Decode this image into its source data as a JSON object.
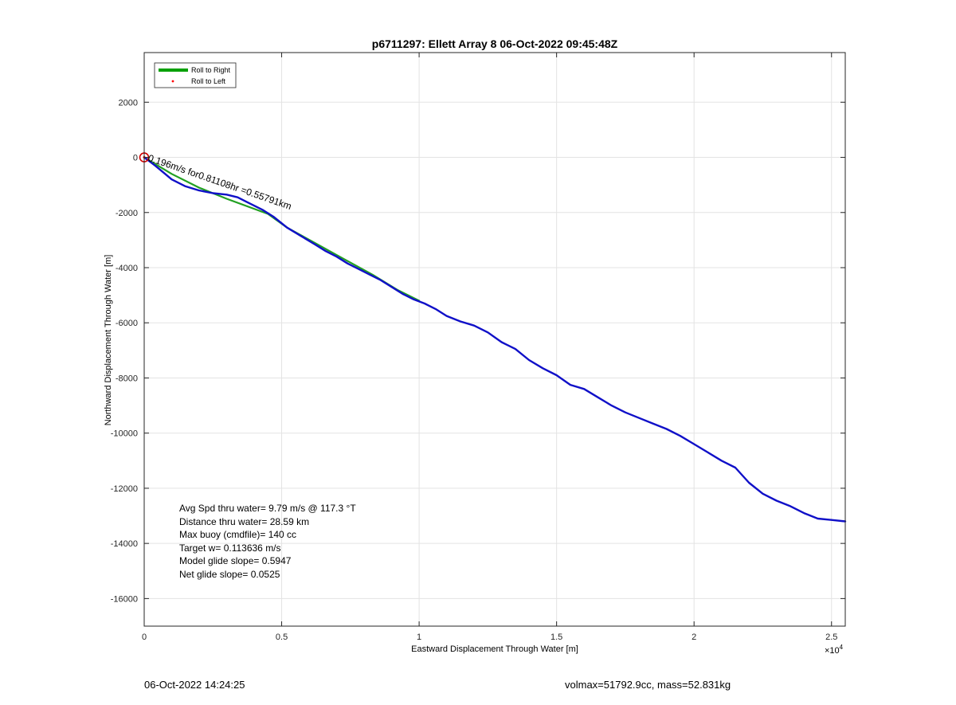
{
  "chart_data": {
    "type": "line",
    "title": "p6711297: Ellett Array 8 06-Oct-2022 09:45:48Z",
    "xlabel": "Eastward Displacement Through Water [m]",
    "ylabel": "Northward Displacement Through Water [m]",
    "x_exponent_label": "×10",
    "x_exponent_power": "4",
    "xlim": [
      0,
      25500
    ],
    "ylim": [
      -17000,
      3800
    ],
    "grid": true,
    "legend_position": "top-left",
    "x_ticks": [
      {
        "value": 0,
        "label": "0"
      },
      {
        "value": 5000,
        "label": "0.5"
      },
      {
        "value": 10000,
        "label": "1"
      },
      {
        "value": 15000,
        "label": "1.5"
      },
      {
        "value": 20000,
        "label": "2"
      },
      {
        "value": 25000,
        "label": "2.5"
      }
    ],
    "y_ticks": [
      {
        "value": 2000,
        "label": "2000"
      },
      {
        "value": 0,
        "label": "0"
      },
      {
        "value": -2000,
        "label": "-2000"
      },
      {
        "value": -4000,
        "label": "-4000"
      },
      {
        "value": -6000,
        "label": "-6000"
      },
      {
        "value": -8000,
        "label": "-8000"
      },
      {
        "value": -10000,
        "label": "-10000"
      },
      {
        "value": -12000,
        "label": "-12000"
      },
      {
        "value": -14000,
        "label": "-14000"
      },
      {
        "value": -16000,
        "label": "-16000"
      }
    ],
    "legend": [
      {
        "label": "Roll to Right",
        "color": "#00a000",
        "kind": "line"
      },
      {
        "label": "Roll to Left",
        "color": "#ff0000",
        "kind": "dot"
      }
    ],
    "series": [
      {
        "name": "Roll to Right",
        "color": "#22a022",
        "x": [
          0,
          500,
          1000,
          2000,
          3000,
          4500,
          5200,
          6200,
          7200,
          8300,
          9200,
          10000
        ],
        "y": [
          0,
          -300,
          -600,
          -1100,
          -1500,
          -2050,
          -2550,
          -3100,
          -3650,
          -4250,
          -4800,
          -5200
        ]
      },
      {
        "name": "track",
        "color": "#1010c8",
        "x": [
          0,
          200,
          400,
          700,
          1000,
          1500,
          2000,
          2500,
          3000,
          3400,
          3800,
          4300,
          4700,
          5200,
          5700,
          6200,
          6600,
          7000,
          7400,
          7800,
          8200,
          8600,
          9000,
          9400,
          9800,
          10200,
          10600,
          11000,
          11500,
          12000,
          12500,
          13000,
          13500,
          14000,
          14500,
          15000,
          15500,
          16000,
          16500,
          17000,
          17500,
          18000,
          18500,
          19000,
          19500,
          20000,
          20500,
          21000,
          21500,
          22000,
          22500,
          23000,
          23500,
          24000,
          24500,
          25000,
          25500
        ],
        "y": [
          0,
          -150,
          -300,
          -550,
          -800,
          -1050,
          -1200,
          -1300,
          -1350,
          -1450,
          -1650,
          -1900,
          -2150,
          -2550,
          -2850,
          -3150,
          -3400,
          -3600,
          -3850,
          -4050,
          -4250,
          -4450,
          -4700,
          -4950,
          -5150,
          -5300,
          -5500,
          -5750,
          -5950,
          -6100,
          -6350,
          -6700,
          -6950,
          -7350,
          -7650,
          -7900,
          -8250,
          -8400,
          -8700,
          -9000,
          -9250,
          -9450,
          -9650,
          -9850,
          -10100,
          -10400,
          -10700,
          -11000,
          -11250,
          -11800,
          -12200,
          -12450,
          -12650,
          -12900,
          -13100,
          -13150,
          -13200
        ]
      }
    ],
    "marker": {
      "x": 0,
      "y": 0,
      "color": "#d00000"
    },
    "annotations": [
      {
        "text": "0.196m/s for0.81108hr =0.55791km",
        "x": 0,
        "y": 0
      }
    ],
    "info_lines": [
      "Avg Spd thru water=  9.79 m/s @ 117.3 °T",
      "Distance thru water= 28.59 km",
      "Max buoy (cmdfile)= 140 cc",
      "Target w= 0.113636 m/s",
      "Model glide slope= 0.5947",
      "Net glide slope= 0.0525"
    ]
  },
  "footer": {
    "left": "06-Oct-2022 14:24:25",
    "right": "volmax=51792.9cc, mass=52.831kg"
  }
}
